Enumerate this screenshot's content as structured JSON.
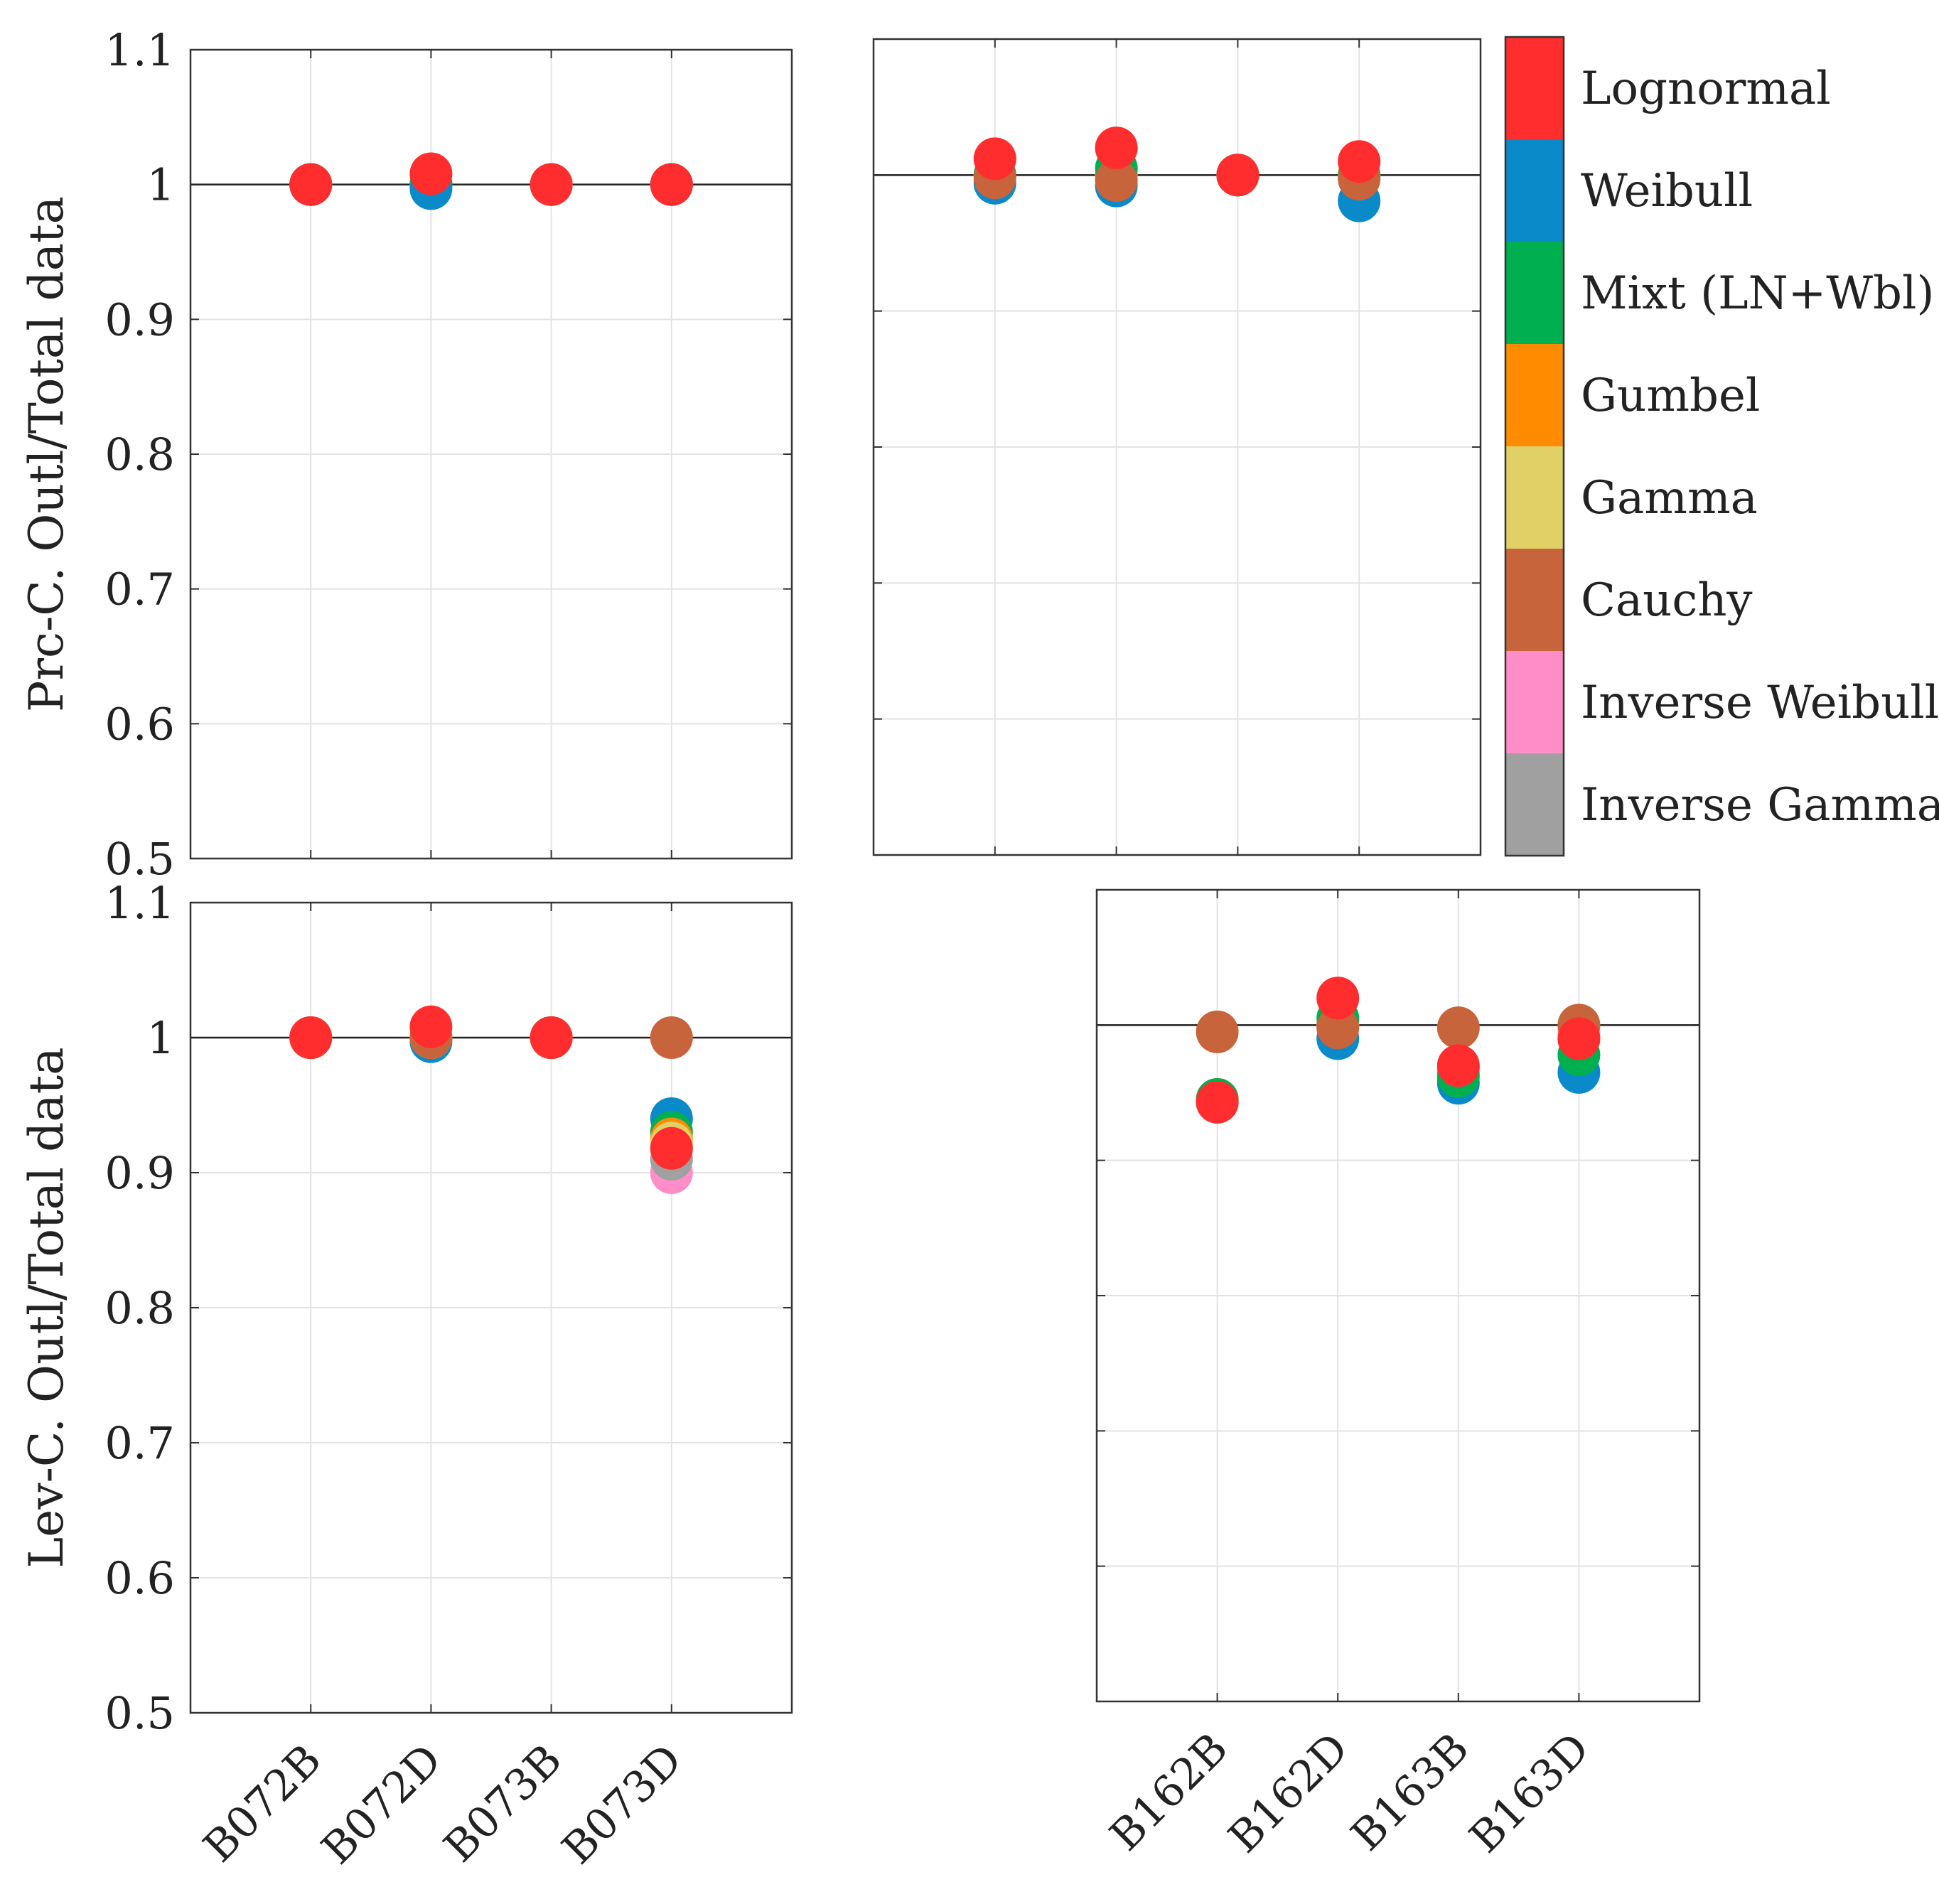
{
  "legend": {
    "items": [
      {
        "label": "Lognormal",
        "color": "#ff2d2d"
      },
      {
        "label": "Weibull",
        "color": "#0a8ac8"
      },
      {
        "label": "Mixt (LN+Wbl)",
        "color": "#00b050"
      },
      {
        "label": "Gumbel",
        "color": "#ff8c00"
      },
      {
        "label": "Gamma",
        "color": "#e0d066"
      },
      {
        "label": "Cauchy",
        "color": "#c8643c"
      },
      {
        "label": "Inverse Weibull",
        "color": "#ff8ec8"
      },
      {
        "label": "Inverse Gamma",
        "color": "#a0a0a0"
      }
    ]
  },
  "chart_data": [
    {
      "type": "scatter",
      "panel": "top-left",
      "ylabel": "Prc-C. Outl/Total data",
      "ylim": [
        0.5,
        1.1
      ],
      "yticks": [
        "0.5",
        "0.6",
        "0.7",
        "0.8",
        "0.9",
        "1",
        "1.1"
      ],
      "show_yticklabels": true,
      "categories": [
        "B072B",
        "B072D",
        "B073B",
        "B073D"
      ],
      "show_xticklabels": false,
      "reference_line": 1.0,
      "series": [
        {
          "name": "Inverse Gamma",
          "values": [
            1.0,
            1.0,
            1.0,
            1.0
          ]
        },
        {
          "name": "Inverse Weibull",
          "values": [
            1.0,
            1.0,
            1.0,
            1.0
          ]
        },
        {
          "name": "Cauchy",
          "values": [
            1.0,
            1.0,
            1.0,
            1.0
          ]
        },
        {
          "name": "Gamma",
          "values": [
            1.0,
            1.0,
            1.0,
            1.0
          ]
        },
        {
          "name": "Gumbel",
          "values": [
            1.0,
            1.0,
            1.0,
            1.0
          ]
        },
        {
          "name": "Mixt (LN+Wbl)",
          "values": [
            1.0,
            1.0,
            1.0,
            1.0
          ]
        },
        {
          "name": "Weibull",
          "values": [
            1.0,
            0.997,
            1.0,
            1.0
          ]
        },
        {
          "name": "Lognormal",
          "values": [
            1.0,
            1.008,
            1.0,
            1.0
          ]
        }
      ]
    },
    {
      "type": "scatter",
      "panel": "top-right",
      "ylabel": "",
      "ylim": [
        0.5,
        1.1
      ],
      "yticks": [
        "0.5",
        "0.6",
        "0.7",
        "0.8",
        "0.9",
        "1",
        "1.1"
      ],
      "show_yticklabels": false,
      "categories": [
        "B162B",
        "B162D",
        "B163B",
        "B163D"
      ],
      "show_xticklabels": false,
      "reference_line": 1.0,
      "series": [
        {
          "name": "Inverse Gamma",
          "values": [
            1.0,
            1.0,
            1.0,
            1.0
          ]
        },
        {
          "name": "Inverse Weibull",
          "values": [
            1.0,
            1.0,
            1.0,
            1.0
          ]
        },
        {
          "name": "Gamma",
          "values": [
            1.0,
            1.0,
            1.0,
            1.0
          ]
        },
        {
          "name": "Gumbel",
          "values": [
            1.0,
            1.0,
            1.0,
            1.0
          ]
        },
        {
          "name": "Weibull",
          "values": [
            0.994,
            0.992,
            1.0,
            0.981
          ]
        },
        {
          "name": "Mixt (LN+Wbl)",
          "values": [
            1.0,
            1.005,
            1.0,
            0.999
          ]
        },
        {
          "name": "Cauchy",
          "values": [
            0.998,
            0.996,
            1.0,
            0.997
          ]
        },
        {
          "name": "Lognormal",
          "values": [
            1.012,
            1.02,
            1.0,
            1.01
          ]
        }
      ]
    },
    {
      "type": "scatter",
      "panel": "bottom-left",
      "ylabel": "Lev-C. Outl/Total data",
      "ylim": [
        0.5,
        1.1
      ],
      "yticks": [
        "0.5",
        "0.6",
        "0.7",
        "0.8",
        "0.9",
        "1",
        "1.1"
      ],
      "show_yticklabels": true,
      "categories": [
        "B072B",
        "B072D",
        "B073B",
        "B073D"
      ],
      "show_xticklabels": true,
      "reference_line": 1.0,
      "series": [
        {
          "name": "Inverse Weibull",
          "values": [
            1.0,
            1.0,
            1.0,
            0.9
          ]
        },
        {
          "name": "Inverse Gamma",
          "values": [
            1.0,
            1.0,
            1.0,
            0.91
          ]
        },
        {
          "name": "Weibull",
          "values": [
            1.0,
            0.997,
            1.0,
            0.94
          ]
        },
        {
          "name": "Mixt (LN+Wbl)",
          "values": [
            1.0,
            1.0,
            1.0,
            0.93
          ]
        },
        {
          "name": "Gumbel",
          "values": [
            1.0,
            1.0,
            1.0,
            0.925
          ]
        },
        {
          "name": "Gamma",
          "values": [
            1.0,
            1.0,
            1.0,
            0.922
          ]
        },
        {
          "name": "Cauchy",
          "values": [
            1.0,
            1.0,
            1.0,
            1.0
          ]
        },
        {
          "name": "Lognormal",
          "values": [
            1.0,
            1.008,
            1.0,
            0.918
          ]
        }
      ]
    },
    {
      "type": "scatter",
      "panel": "bottom-right",
      "ylabel": "",
      "ylim": [
        0.5,
        1.1
      ],
      "yticks": [
        "0.5",
        "0.6",
        "0.7",
        "0.8",
        "0.9",
        "1",
        "1.1"
      ],
      "show_yticklabels": false,
      "categories": [
        "B162B",
        "B162D",
        "B163B",
        "B163D"
      ],
      "show_xticklabels": true,
      "reference_line": 1.0,
      "series": [
        {
          "name": "Inverse Gamma",
          "values": [
            0.945,
            1.0,
            0.965,
            1.0
          ]
        },
        {
          "name": "Inverse Weibull",
          "values": [
            0.943,
            1.0,
            0.965,
            0.995
          ]
        },
        {
          "name": "Gamma",
          "values": [
            0.945,
            1.0,
            0.968,
            0.99
          ]
        },
        {
          "name": "Gumbel",
          "values": [
            0.945,
            1.0,
            0.968,
            0.99
          ]
        },
        {
          "name": "Weibull",
          "values": [
            0.943,
            0.99,
            0.957,
            0.965
          ]
        },
        {
          "name": "Mixt (LN+Wbl)",
          "values": [
            0.945,
            1.005,
            0.962,
            0.978
          ]
        },
        {
          "name": "Cauchy",
          "values": [
            0.995,
            0.998,
            0.998,
            1.0
          ]
        },
        {
          "name": "Lognormal",
          "values": [
            0.943,
            1.02,
            0.97,
            0.99
          ]
        }
      ]
    }
  ]
}
